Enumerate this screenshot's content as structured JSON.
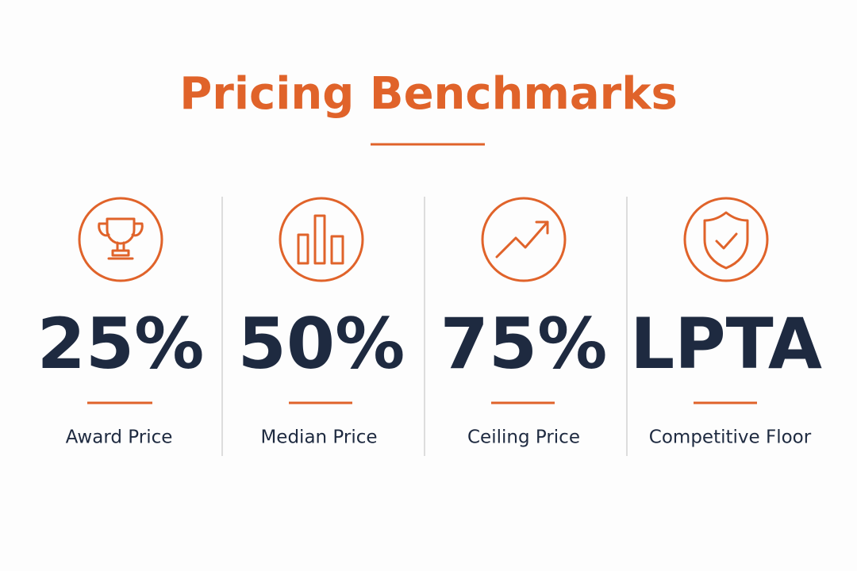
{
  "header": {
    "title": "Pricing Benchmarks"
  },
  "cards": [
    {
      "value": "25%",
      "label": "Award Price"
    },
    {
      "value": "50%",
      "label": "Median Price"
    },
    {
      "value": "75%",
      "label": "Ceiling Price"
    },
    {
      "value": "LPTA",
      "label": "Competitive Floor"
    }
  ]
}
